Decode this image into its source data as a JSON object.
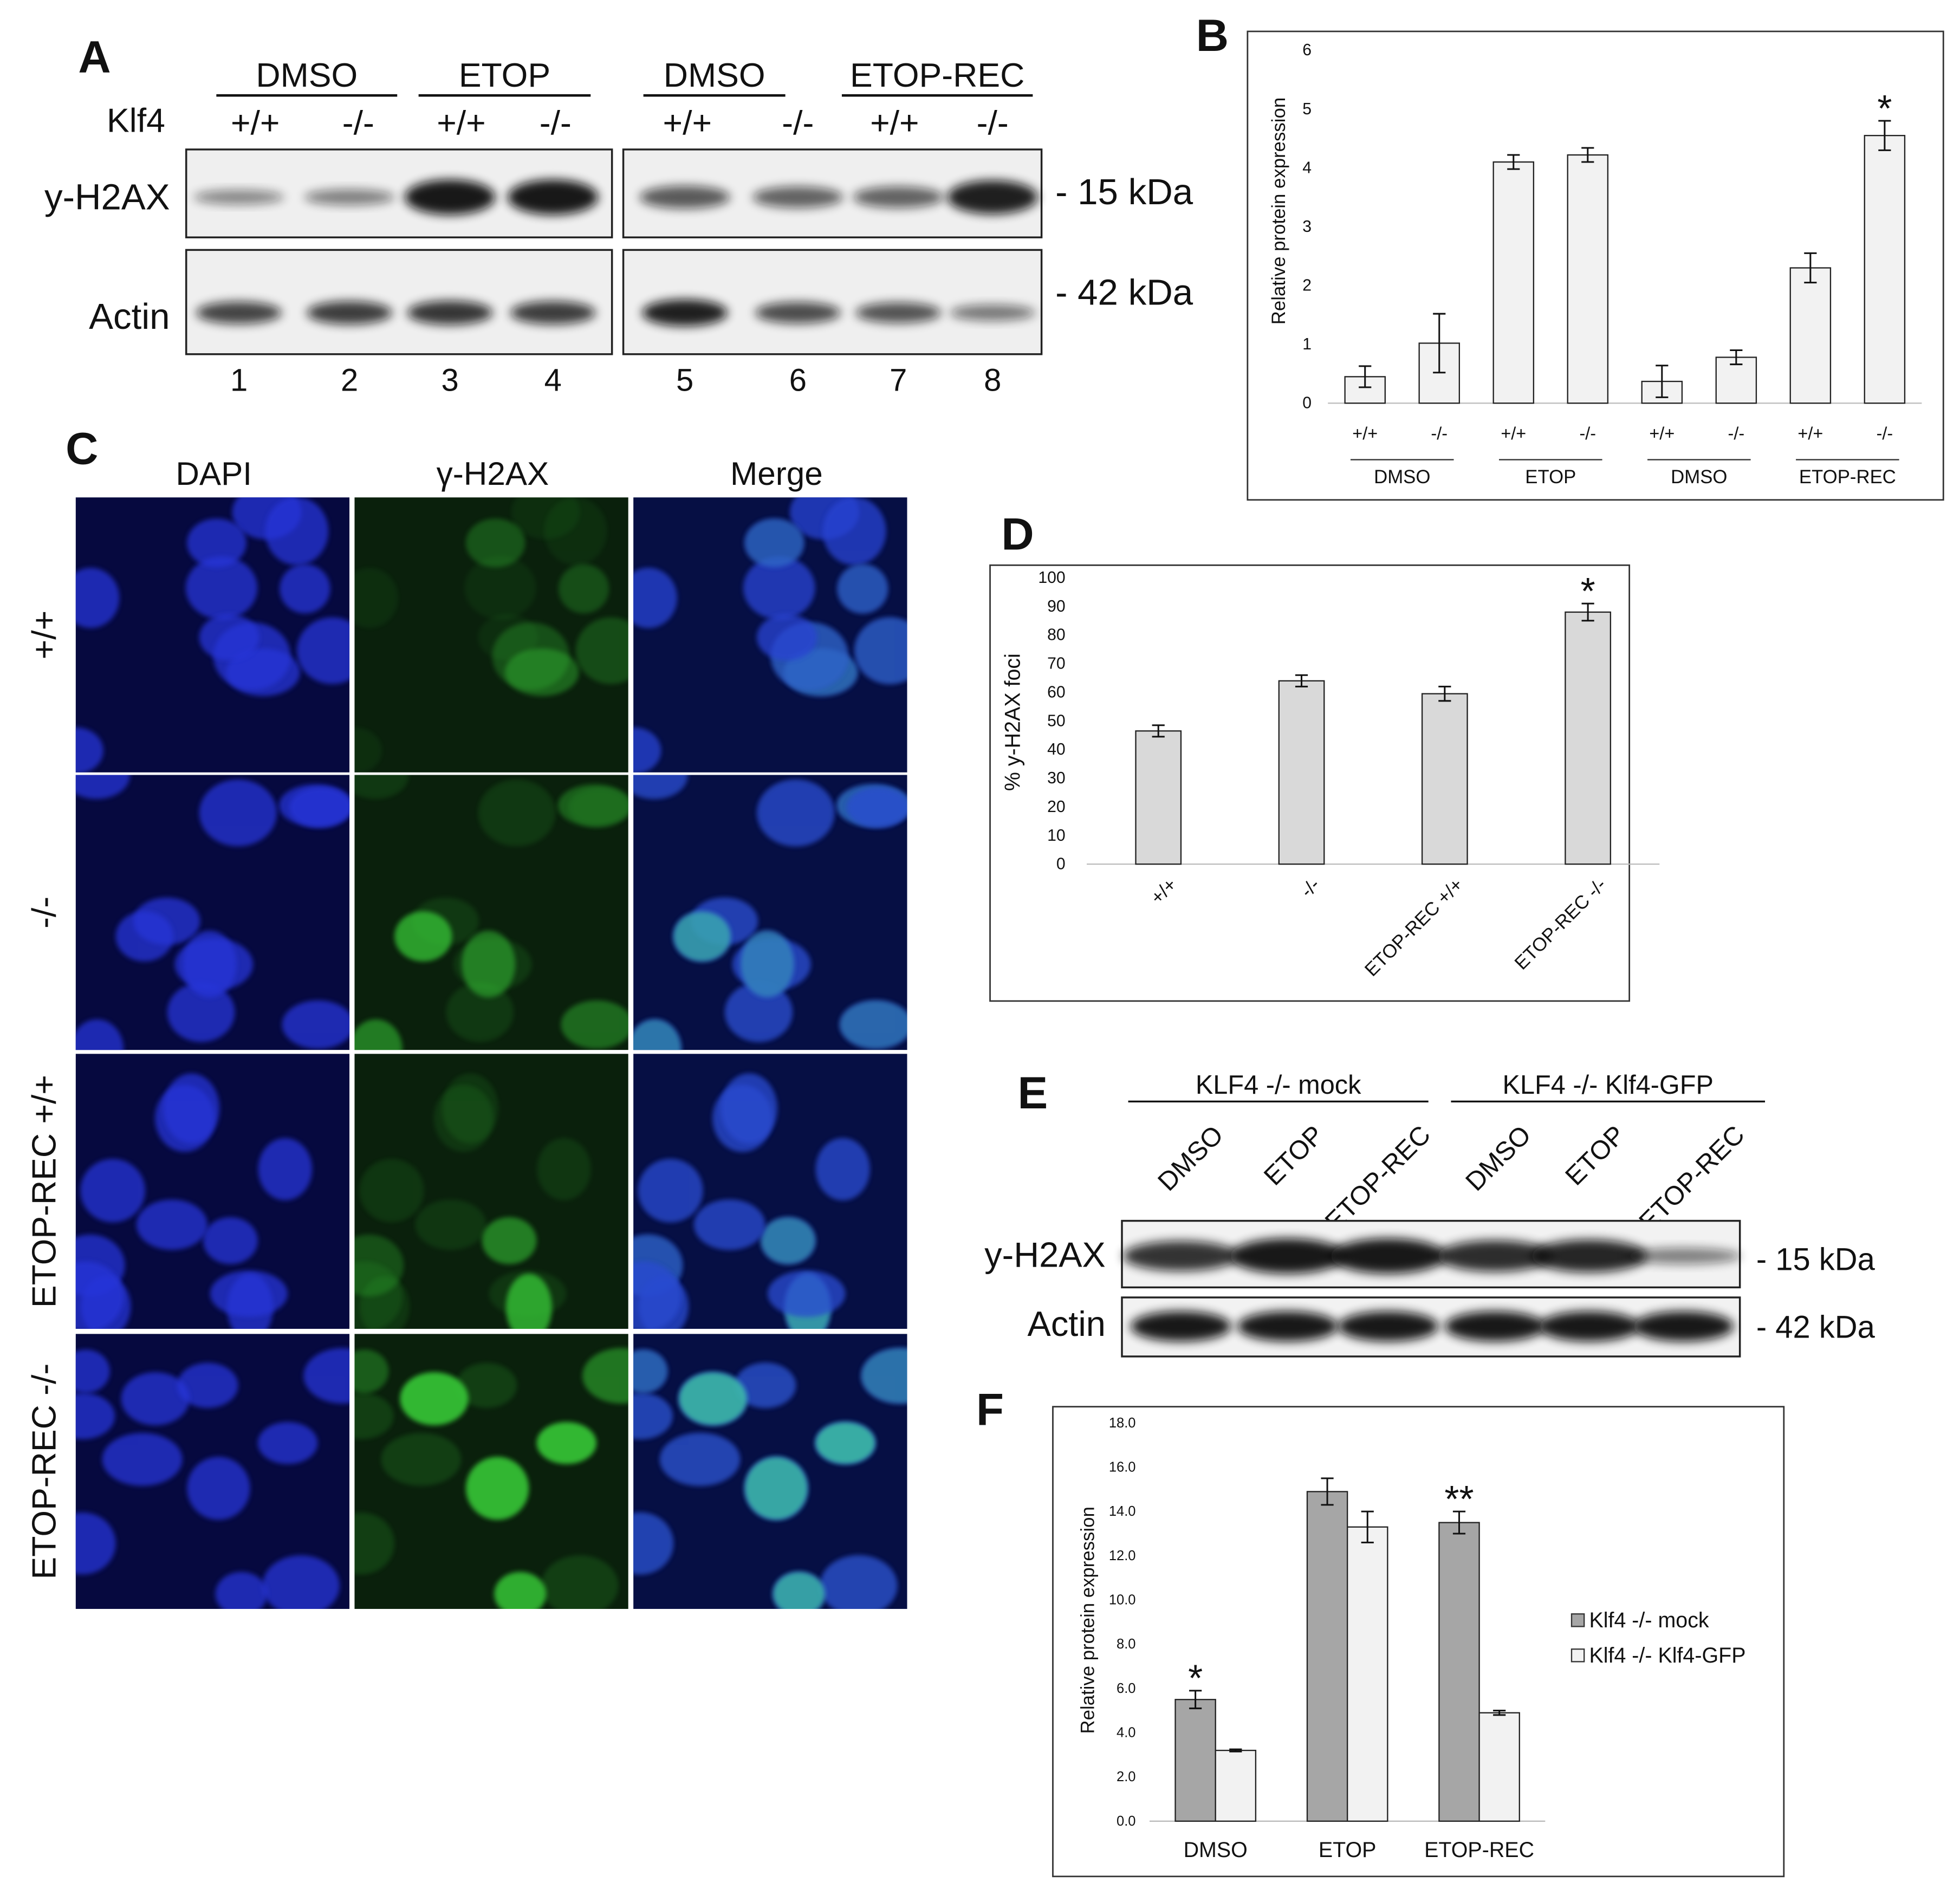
{
  "panel_a": {
    "label": "A",
    "groups": [
      "DMSO",
      "ETOP",
      "DMSO",
      "ETOP-REC"
    ],
    "genotype_label": "Klf4",
    "genotypes": [
      "+/+",
      "-/-",
      "+/+",
      "-/-",
      "+/+",
      "-/-",
      "+/+",
      "-/-"
    ],
    "rows": [
      "y-H2AX",
      "Actin"
    ],
    "sizes": [
      "- 15 kDa",
      "- 42 kDa"
    ],
    "lanes": [
      1,
      2,
      3,
      4,
      5,
      6,
      7,
      8
    ]
  },
  "panel_c": {
    "label": "C",
    "columns": [
      "DAPI",
      "γ-H2AX",
      "Merge"
    ],
    "rows": [
      "+/+",
      "-/-",
      "ETOP-REC +/+",
      "ETOP-REC -/-"
    ]
  },
  "panel_e": {
    "label": "E",
    "groups": [
      "KLF4 -/- mock",
      "KLF4 -/- Klf4-GFP"
    ],
    "lanes": [
      "DMSO",
      "ETOP",
      "ETOP-REC",
      "DMSO",
      "ETOP",
      "ETOP-REC"
    ],
    "rows": [
      "y-H2AX",
      "Actin"
    ],
    "sizes": [
      "- 15 kDa",
      "- 42 kDa"
    ]
  },
  "chart_data": [
    {
      "type": "bar",
      "label": "B",
      "ylabel": "Relative protein expression",
      "categories": [
        "+/+",
        "-/-",
        "+/+",
        "-/-",
        "+/+",
        "-/-",
        "+/+",
        "-/-"
      ],
      "groups": [
        "DMSO",
        "ETOP",
        "DMSO",
        "ETOP-REC"
      ],
      "values": [
        0.45,
        1.02,
        4.1,
        4.22,
        0.37,
        0.78,
        2.3,
        4.55
      ],
      "errors": [
        0.18,
        0.5,
        0.12,
        0.12,
        0.27,
        0.12,
        0.25,
        0.25
      ],
      "color": "#f2f2f2",
      "ylim": [
        0,
        6
      ],
      "yticks": [
        0,
        1,
        2,
        3,
        4,
        5,
        6
      ],
      "annotations": [
        "*"
      ]
    },
    {
      "type": "bar",
      "label": "D",
      "ylabel": "% y-H2AX foci",
      "categories": [
        "+/+",
        "-/-",
        "ETOP-REC +/+",
        "ETOP-REC -/-"
      ],
      "values": [
        46.5,
        64,
        59.5,
        88
      ],
      "errors": [
        2,
        2,
        2.5,
        3
      ],
      "color": "#d9d9d9",
      "ylim": [
        0,
        100
      ],
      "yticks": [
        0,
        10,
        20,
        30,
        40,
        50,
        60,
        70,
        80,
        90,
        100
      ],
      "annotations": [
        "*"
      ]
    },
    {
      "type": "bar",
      "label": "F",
      "ylabel": "Relative protein expression",
      "categories": [
        "DMSO",
        "ETOP",
        "ETOP-REC"
      ],
      "series": [
        {
          "name": "Klf4 -/- mock",
          "color": "#a6a6a6",
          "values": [
            5.5,
            14.9,
            13.5
          ],
          "errors": [
            0.4,
            0.6,
            0.5
          ]
        },
        {
          "name": "Klf4 -/- Klf4-GFP",
          "color": "#f2f2f2",
          "values": [
            3.2,
            13.3,
            4.9
          ],
          "errors": [
            0.05,
            0.7,
            0.1
          ]
        }
      ],
      "ylim": [
        0,
        18
      ],
      "yticks": [
        {
          "value": 0,
          "label": "0.0"
        },
        {
          "value": 2,
          "label": "2.0"
        },
        {
          "value": 4,
          "label": "4.0"
        },
        {
          "value": 6,
          "label": "6.0"
        },
        {
          "value": 8,
          "label": "8.0"
        },
        {
          "value": 10,
          "label": "10.0"
        },
        {
          "value": 12,
          "label": "12.0"
        },
        {
          "value": 14,
          "label": "14.0"
        },
        {
          "value": 16,
          "label": "16.0"
        },
        {
          "value": 18,
          "label": "18.0"
        }
      ],
      "annotations": [
        "*",
        "**"
      ]
    }
  ]
}
